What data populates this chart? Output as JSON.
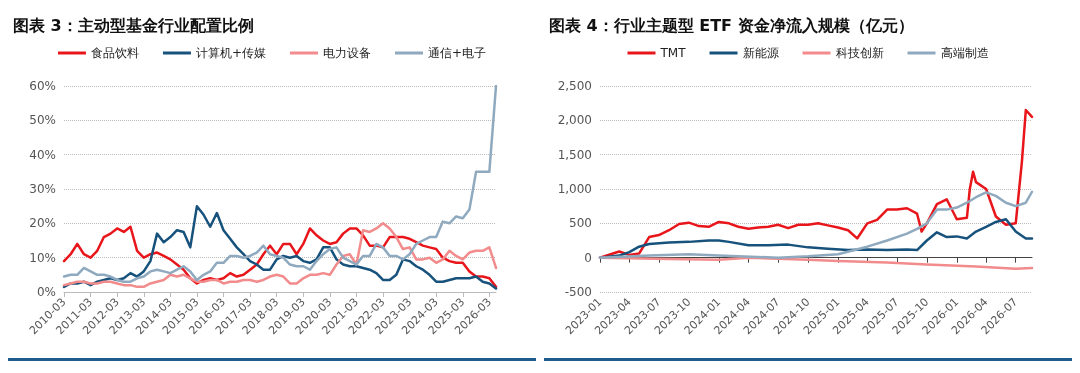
{
  "chart_data": [
    {
      "type": "line",
      "title": "图表 3：主动型基金行业配置比例",
      "legend": "top",
      "grid": "y",
      "marker": "none",
      "line_style": "solid",
      "categories": [
        "2010-03",
        null,
        null,
        null,
        "2011-03",
        null,
        null,
        null,
        "2012-03",
        null,
        null,
        null,
        "2013-03",
        null,
        null,
        null,
        "2014-03",
        null,
        null,
        null,
        "2015-03",
        null,
        null,
        null,
        "2016-03",
        null,
        null,
        null,
        "2017-03",
        null,
        null,
        null,
        "2018-03",
        null,
        null,
        null,
        "2019-03",
        null,
        null,
        null,
        "2020-03",
        null,
        null,
        null,
        "2021-03",
        null,
        null,
        null,
        "2022-03",
        null,
        null,
        null,
        "2023-03",
        null,
        null,
        null,
        "2024-03",
        null,
        null,
        null,
        "2025-03",
        null,
        null,
        null,
        "2026-03",
        null
      ],
      "ylim": [
        0,
        60
      ],
      "yticks": [
        {
          "value": 0,
          "label": "0%"
        },
        {
          "value": 10,
          "label": "10%"
        },
        {
          "value": 20,
          "label": "20%"
        },
        {
          "value": 30,
          "label": "30%"
        },
        {
          "value": 40,
          "label": "40%"
        },
        {
          "value": 50,
          "label": "50%"
        },
        {
          "value": 60,
          "label": "60%"
        }
      ],
      "series": [
        {
          "name": "食品饮料",
          "color": "#e8161b",
          "values": [
            9,
            11,
            14,
            11,
            10,
            12,
            16,
            17,
            18.5,
            17.5,
            19,
            12,
            10,
            11,
            11.5,
            10.5,
            9.5,
            8,
            6.5,
            4,
            2.5,
            3.5,
            4,
            3.5,
            4,
            5.5,
            4.5,
            5,
            6.5,
            8,
            11,
            13.5,
            11,
            14,
            14,
            11,
            14,
            18.5,
            16.5,
            15,
            14,
            14.5,
            17,
            18.5,
            18.5,
            16.5,
            13.5,
            13.5,
            13,
            16,
            16,
            16,
            15.5,
            14.5,
            13.5,
            13,
            12.5,
            10,
            9,
            8.5,
            8.5,
            6,
            4.5,
            4.5,
            4,
            1.5
          ]
        },
        {
          "name": "计算机+传媒",
          "color": "#17527c",
          "values": [
            1.5,
            2.5,
            2.5,
            3,
            2,
            3,
            3.5,
            4,
            3.5,
            4,
            5.5,
            4.5,
            6,
            9,
            17,
            14.5,
            16,
            18,
            17.5,
            13,
            25,
            22.5,
            19,
            23,
            18,
            15.5,
            13,
            11,
            9,
            8,
            6.5,
            6.5,
            9.5,
            10.5,
            10,
            10.5,
            9,
            8.5,
            9.5,
            13,
            13,
            9.5,
            8,
            7.5,
            7.5,
            7,
            6.5,
            5.5,
            3.5,
            3.5,
            5,
            9.5,
            9,
            7.5,
            6.5,
            5,
            3,
            3,
            3.5,
            4,
            4,
            4,
            4.5,
            3,
            2.5,
            1
          ]
        },
        {
          "name": "电力设备",
          "color": "#f28b8c",
          "values": [
            2,
            2.5,
            3,
            3,
            2.5,
            2.5,
            3,
            3,
            2.5,
            2,
            2,
            1.5,
            1.5,
            2.5,
            3,
            3.5,
            5,
            4.5,
            5,
            4,
            3,
            3,
            3.5,
            3.5,
            2.5,
            3,
            3,
            3.5,
            3.5,
            3,
            3.5,
            4.5,
            5,
            4.5,
            2.5,
            2.5,
            4,
            5,
            5,
            5.5,
            5,
            8,
            10.5,
            11,
            8,
            18,
            17.5,
            18.5,
            20,
            18.5,
            16,
            12.5,
            13,
            9.5,
            9.5,
            10,
            8.5,
            9.5,
            12,
            10.5,
            9.5,
            11.5,
            12,
            12,
            13,
            7
          ]
        },
        {
          "name": "通信+电子",
          "color": "#8fa9bf",
          "values": [
            4.5,
            5,
            5,
            7,
            6,
            5,
            5,
            4.5,
            3.5,
            3,
            3,
            4,
            4.5,
            6,
            6.5,
            6,
            5.5,
            6.5,
            7.5,
            6,
            3.5,
            5,
            6,
            8.5,
            8.5,
            10.5,
            10.5,
            10,
            10.5,
            11.5,
            13.5,
            11,
            10.5,
            10,
            8,
            7.5,
            7.5,
            6.5,
            9,
            11,
            12.5,
            13,
            10,
            9,
            8,
            10.5,
            10.5,
            14,
            13,
            10.5,
            10.5,
            9.5,
            11,
            14,
            15,
            16,
            16,
            20.5,
            20,
            22,
            21.5,
            24,
            35,
            35,
            35,
            60
          ]
        }
      ]
    },
    {
      "type": "line",
      "title": "图表 4：行业主题型 ETF 资金净流入规模（亿元）",
      "legend": "top",
      "grid": "y",
      "marker": "none",
      "line_style": "solid",
      "xlim": [
        "2023-01-01",
        "2026-08-20"
      ],
      "xticks": [
        "2023-01",
        "2023-04",
        "2023-07",
        "2023-10",
        "2024-01",
        "2024-04",
        "2024-07",
        "2024-10",
        "2025-01",
        "2025-04",
        "2025-07",
        "2025-10",
        "2026-01",
        "2026-04",
        "2026-07"
      ],
      "ylim": [
        -500,
        2500
      ],
      "yticks": [
        -500,
        0,
        500,
        {
          "value": 1000,
          "label": "1,000"
        },
        {
          "value": 1500,
          "label": "1,500"
        },
        {
          "value": 2000,
          "label": "2,000"
        },
        {
          "value": 2500,
          "label": "2,500"
        }
      ],
      "series": [
        {
          "name": "TMT",
          "color": "#e8161b",
          "x": [
            "2023-01-01",
            "2023-03-01",
            "2023-04-01",
            "2023-05-01",
            "2023-06-01",
            "2023-07-01",
            "2023-08-01",
            "2023-09-01",
            "2023-10-01",
            "2023-11-01",
            "2023-12-01",
            "2024-01-01",
            "2024-02-01",
            "2024-03-01",
            "2024-04-01",
            "2024-05-01",
            "2024-06-01",
            "2024-07-01",
            "2024-08-01",
            "2024-09-01",
            "2024-10-01",
            "2024-11-01",
            "2024-12-01",
            "2025-01-01",
            "2025-02-01",
            "2025-03-01",
            "2025-04-01",
            "2025-05-01",
            "2025-06-01",
            "2025-07-01",
            "2025-08-01",
            "2025-09-01",
            "2025-09-15",
            "2025-10-01",
            "2025-11-01",
            "2025-12-01",
            "2026-01-01",
            "2026-02-01",
            "2026-02-10",
            "2026-02-20",
            "2026-03-01",
            "2026-04-01",
            "2026-05-01",
            "2026-06-01",
            "2026-07-01",
            "2026-07-20",
            "2026-08-01",
            "2026-08-20"
          ],
          "values": [
            0,
            90,
            40,
            60,
            300,
            330,
            400,
            490,
            510,
            460,
            450,
            520,
            500,
            450,
            420,
            440,
            450,
            480,
            430,
            480,
            480,
            500,
            470,
            440,
            400,
            280,
            500,
            550,
            700,
            700,
            720,
            640,
            380,
            500,
            780,
            850,
            560,
            580,
            1000,
            1250,
            1100,
            1000,
            600,
            480,
            500,
            1400,
            2150,
            2050
          ]
        },
        {
          "name": "新能源",
          "color": "#17527c",
          "x": [
            "2023-01-01",
            "2023-03-01",
            "2023-04-01",
            "2023-05-01",
            "2023-06-01",
            "2023-08-01",
            "2023-10-01",
            "2023-12-01",
            "2024-01-01",
            "2024-02-01",
            "2024-04-01",
            "2024-06-01",
            "2024-08-01",
            "2024-10-01",
            "2024-12-01",
            "2025-02-01",
            "2025-04-01",
            "2025-06-01",
            "2025-08-01",
            "2025-09-01",
            "2025-10-01",
            "2025-11-01",
            "2025-12-01",
            "2026-01-01",
            "2026-02-01",
            "2026-03-01",
            "2026-04-01",
            "2026-05-01",
            "2026-06-01",
            "2026-07-01",
            "2026-08-01",
            "2026-08-20"
          ],
          "values": [
            0,
            30,
            80,
            160,
            200,
            220,
            230,
            250,
            250,
            230,
            180,
            180,
            190,
            150,
            130,
            110,
            120,
            110,
            120,
            110,
            250,
            370,
            300,
            310,
            280,
            380,
            450,
            520,
            560,
            380,
            280,
            280
          ]
        },
        {
          "name": "科技创新",
          "color": "#f28b8c",
          "x": [
            "2023-01-01",
            "2023-08-01",
            "2024-01-01",
            "2024-04-01",
            "2024-10-01",
            "2025-01-01",
            "2025-06-01",
            "2025-10-01",
            "2026-03-01",
            "2026-07-01",
            "2026-08-20"
          ],
          "values": [
            0,
            -20,
            -30,
            0,
            -30,
            -50,
            -70,
            -100,
            -130,
            -160,
            -150
          ]
        },
        {
          "name": "高端制造",
          "color": "#8fa9bf",
          "x": [
            "2023-01-01",
            "2023-06-01",
            "2023-10-01",
            "2024-01-01",
            "2024-07-01",
            "2024-10-01",
            "2025-01-01",
            "2025-04-01",
            "2025-06-01",
            "2025-08-01",
            "2025-09-01",
            "2025-10-01",
            "2025-11-01",
            "2025-12-01",
            "2026-01-01",
            "2026-02-01",
            "2026-03-01",
            "2026-04-01",
            "2026-05-01",
            "2026-06-01",
            "2026-07-01",
            "2026-08-01",
            "2026-08-20"
          ],
          "values": [
            0,
            30,
            50,
            30,
            0,
            20,
            50,
            160,
            250,
            350,
            420,
            500,
            700,
            700,
            730,
            800,
            880,
            950,
            900,
            800,
            750,
            800,
            960
          ]
        }
      ]
    }
  ]
}
